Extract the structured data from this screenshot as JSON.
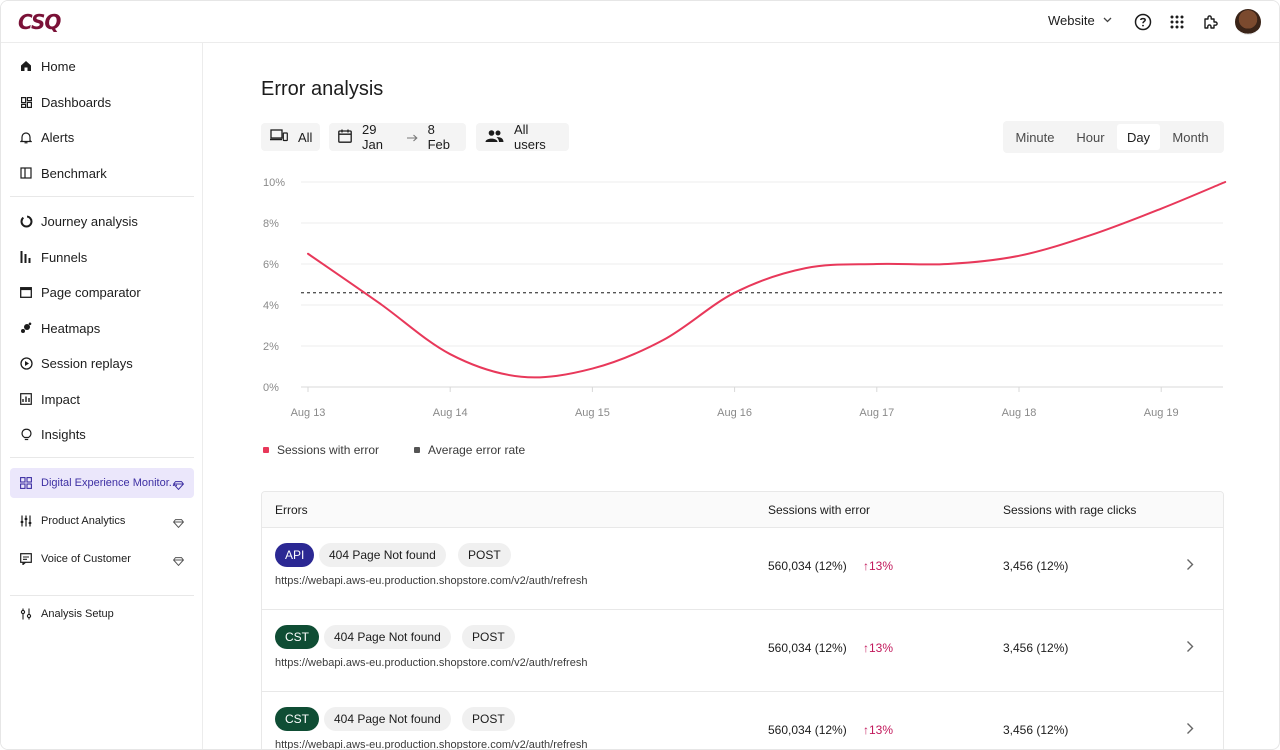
{
  "header": {
    "logo": "CSQ",
    "site_select": "Website"
  },
  "sidebar": {
    "items": [
      {
        "label": "Home"
      },
      {
        "label": "Dashboards"
      },
      {
        "label": "Alerts"
      },
      {
        "label": "Benchmark"
      },
      {
        "label": "Journey analysis"
      },
      {
        "label": "Funnels"
      },
      {
        "label": "Page comparator"
      },
      {
        "label": "Heatmaps"
      },
      {
        "label": "Session replays"
      },
      {
        "label": "Impact"
      },
      {
        "label": "Insights"
      },
      {
        "label": "Digital Experience Monitor..."
      },
      {
        "label": "Product Analytics"
      },
      {
        "label": "Voice of Customer"
      },
      {
        "label": "Analysis Setup"
      }
    ]
  },
  "main": {
    "title": "Error analysis",
    "filters": {
      "device": "All",
      "date_from": "29 Jan",
      "date_to": "8 Feb",
      "users": "All users"
    },
    "granularity": {
      "options": [
        "Minute",
        "Hour",
        "Day",
        "Month"
      ],
      "selected": "Day"
    }
  },
  "colors": {
    "accent": "#e8385a",
    "brand": "#7a1137",
    "active_nav_bg": "#ebe7fb",
    "api_tag": "#2b2893",
    "cst_tag": "#0f4d34"
  },
  "chart_data": {
    "type": "line",
    "x": [
      "Aug 13",
      "Aug 14",
      "Aug 15",
      "Aug 16",
      "Aug 17",
      "Aug 18",
      "Aug 19"
    ],
    "series": [
      {
        "name": "Sessions with error",
        "x": [
          0,
          0.5,
          1,
          1.5,
          2,
          2.5,
          3,
          3.5,
          4,
          4.5,
          5,
          5.5,
          6,
          6.45
        ],
        "values": [
          6.5,
          4.1,
          1.6,
          0.5,
          0.9,
          2.3,
          4.6,
          5.8,
          6.0,
          6.0,
          6.4,
          7.4,
          8.7,
          10.0
        ],
        "color": "#e8385a"
      },
      {
        "name": "Average error rate",
        "constant": 4.6,
        "style": "dashed",
        "color": "#555555"
      }
    ],
    "y_ticks": [
      "0%",
      "2%",
      "4%",
      "6%",
      "8%",
      "10%"
    ],
    "ylim": [
      0,
      10
    ],
    "grid": true,
    "legend": "bottom-left"
  },
  "table": {
    "columns": [
      "Errors",
      "Sessions with error",
      "Sessions with rage clicks"
    ],
    "rows": [
      {
        "source": "API",
        "error": "404 Page Not found",
        "method": "POST",
        "url": "https://webapi.aws-eu.production.shopstore.com/v2/auth/refresh",
        "sessions": "560,034 (12%)",
        "change": "13%",
        "rage": "3,456 (12%)"
      },
      {
        "source": "CST",
        "error": "404 Page Not found",
        "method": "POST",
        "url": "https://webapi.aws-eu.production.shopstore.com/v2/auth/refresh",
        "sessions": "560,034 (12%)",
        "change": "13%",
        "rage": "3,456 (12%)"
      },
      {
        "source": "CST",
        "error": "404 Page Not found",
        "method": "POST",
        "url": "https://webapi.aws-eu.production.shopstore.com/v2/auth/refresh",
        "sessions": "560,034 (12%)",
        "change": "13%",
        "rage": "3,456 (12%)"
      }
    ]
  }
}
